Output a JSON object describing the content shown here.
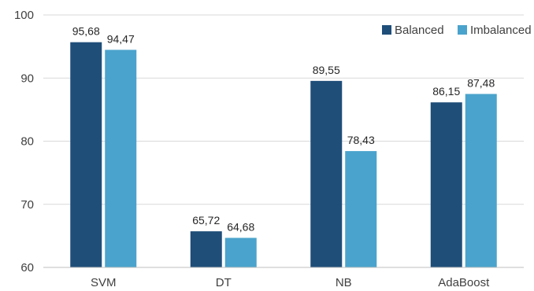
{
  "chart_data": {
    "type": "bar",
    "categories": [
      "SVM",
      "DT",
      "NB",
      "AdaBoost"
    ],
    "series": [
      {
        "name": "Balanced",
        "color": "#1f4e79",
        "values": [
          95.68,
          65.72,
          89.55,
          86.15
        ],
        "labels": [
          "95,68",
          "65,72",
          "89,55",
          "86,15"
        ]
      },
      {
        "name": "Imbalanced",
        "color": "#4aa3cc",
        "values": [
          94.47,
          64.68,
          78.43,
          87.48
        ],
        "labels": [
          "94,47",
          "64,68",
          "78,43",
          "87,48"
        ]
      }
    ],
    "yticks": [
      60,
      70,
      80,
      90,
      100
    ],
    "ylim": [
      60,
      100
    ],
    "grid": true,
    "legend_position": "top-right",
    "title": "",
    "xlabel": "",
    "ylabel": ""
  }
}
